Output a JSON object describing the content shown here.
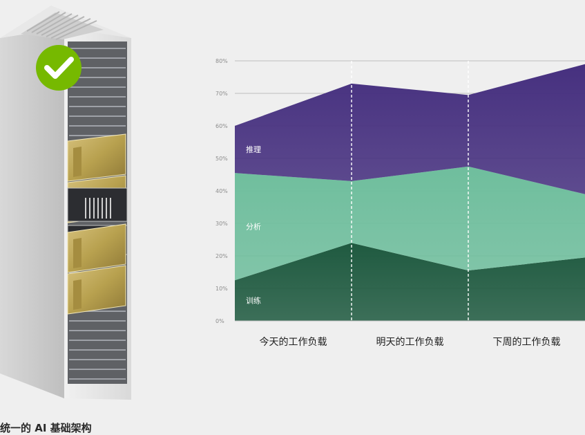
{
  "caption": "统一的 AI 基础架构",
  "status": {
    "icon": "check-icon",
    "color": "#76b900"
  },
  "colors": {
    "training": "#1f5a40",
    "analytics": "#6fbe9d",
    "inference": "#46307f",
    "axis": "#bdbdbd",
    "tick_text": "#8c8c8c"
  },
  "chart_data": {
    "type": "area",
    "categories": [
      "今天的工作负载",
      "明天的工作负载",
      "下周的工作负载"
    ],
    "x": [
      0,
      1,
      2,
      3
    ],
    "ylim": [
      0,
      80
    ],
    "yticks": [
      "0%",
      "10%",
      "20%",
      "30%",
      "40%",
      "50%",
      "60%",
      "70%",
      "80%"
    ],
    "grid": true,
    "stacked": true,
    "series": [
      {
        "name": "训练",
        "color": "#1f5a40",
        "values": [
          12.5,
          24,
          15.5,
          19.5
        ]
      },
      {
        "name": "分析",
        "color": "#6fbe9d",
        "values": [
          33,
          19,
          32,
          19.5
        ]
      },
      {
        "name": "推理",
        "color": "#46307f",
        "values": [
          14.5,
          30,
          22,
          40
        ]
      }
    ]
  }
}
